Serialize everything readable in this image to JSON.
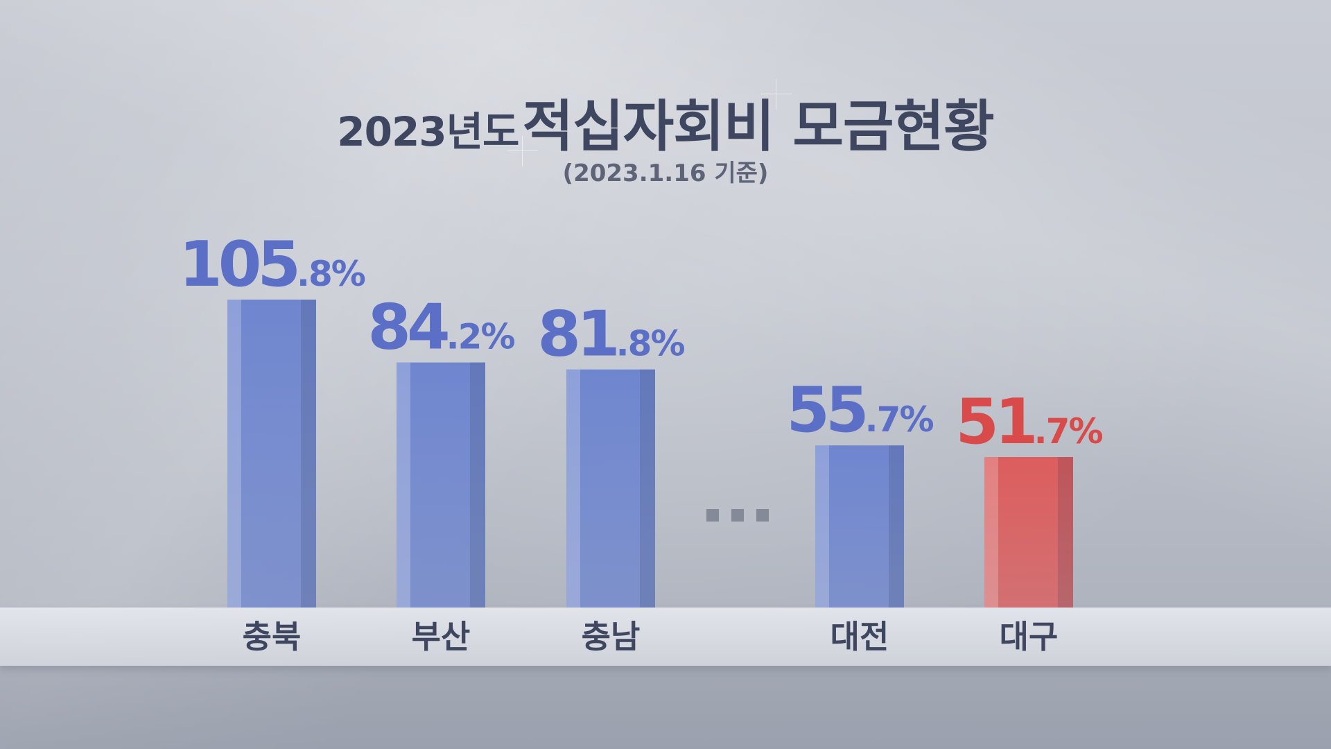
{
  "title": {
    "year": "2023년도",
    "main": "적십자회비 모금현황",
    "subtitle": "(2023.1.16 기준)"
  },
  "chart_data": {
    "type": "bar",
    "title": "2023년도 적십자회비 모금현황",
    "subtitle": "(2023.1.16 기준)",
    "categories": [
      "충북",
      "부산",
      "충남",
      "대전",
      "대구"
    ],
    "values": [
      105.8,
      84.2,
      81.8,
      55.7,
      51.7
    ],
    "value_labels": [
      {
        "int": "105",
        "dec": ".8%"
      },
      {
        "int": "84",
        "dec": ".2%"
      },
      {
        "int": "81",
        "dec": ".8%"
      },
      {
        "int": "55",
        "dec": ".7%"
      },
      {
        "int": "51",
        "dec": ".7%"
      }
    ],
    "unit": "%",
    "bar_colors": [
      "#6f86cf",
      "#6f86cf",
      "#6f86cf",
      "#6f86cf",
      "#dc5d5d"
    ],
    "label_colors": [
      "#5b6fc7",
      "#5b6fc7",
      "#5b6fc7",
      "#5b6fc7",
      "#d94a4a"
    ],
    "ellipsis_after_index": 2,
    "xlabel": "",
    "ylabel": "",
    "ylim": [
      0,
      110
    ],
    "grid": false,
    "legend": "none"
  }
}
